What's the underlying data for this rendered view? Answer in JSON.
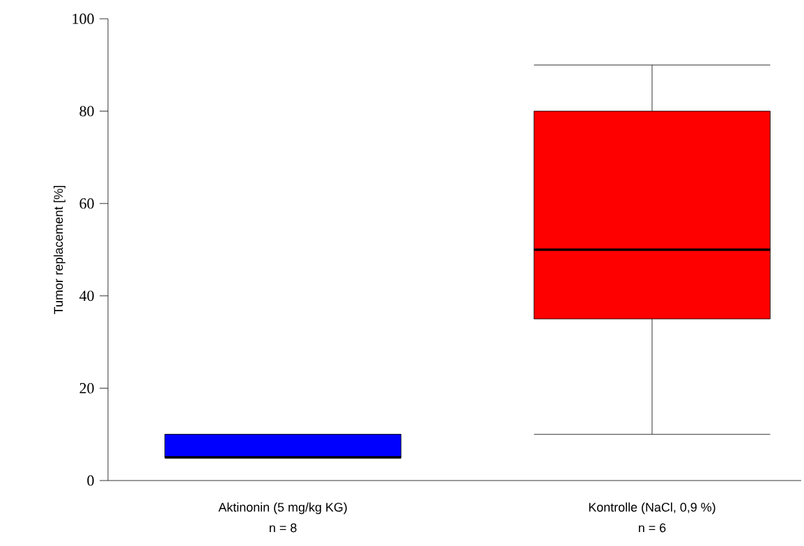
{
  "chart_data": {
    "type": "box",
    "ylabel": "Tumor replacement [%]",
    "categories": [
      "Aktinonin (5 mg/kg KG)",
      "Kontrolle (NaCl, 0,9 %)"
    ],
    "series": [
      {
        "colors": [
          "#0000ff",
          "#ff0000"
        ],
        "boxes": [
          {
            "low": 5,
            "q1": 5,
            "median": 5,
            "q3": 10,
            "high": 10
          },
          {
            "low": 10,
            "q1": 35,
            "median": 50,
            "q3": 80,
            "high": 90
          }
        ]
      }
    ],
    "annotations": [
      "n = 8",
      "n = 6"
    ],
    "ylim": [
      0,
      100
    ],
    "yticks": [
      0,
      20,
      40,
      60,
      80,
      100
    ],
    "grid": false
  }
}
